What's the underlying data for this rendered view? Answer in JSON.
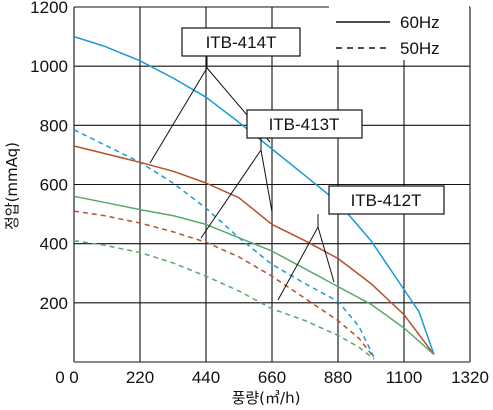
{
  "chart_data": {
    "type": "line",
    "xlabel": "풍량(㎥/h)",
    "ylabel": "정압(mmAq)",
    "xlim": [
      0,
      1320
    ],
    "ylim": [
      0,
      1200
    ],
    "xticks": [
      0,
      220,
      440,
      660,
      880,
      1100,
      1320
    ],
    "yticks": [
      0,
      200,
      400,
      600,
      800,
      1000,
      1200
    ],
    "grid": true,
    "legend_position": "top-right",
    "legend": [
      {
        "label": "60Hz",
        "style": "solid"
      },
      {
        "label": "50Hz",
        "style": "dashed"
      }
    ],
    "colors": {
      "ITB-414T": "#1a9ad6",
      "ITB-413T": "#b5502a",
      "ITB-412T": "#5aa86a"
    },
    "model_labels": [
      "ITB-414T",
      "ITB-413T",
      "ITB-412T"
    ],
    "series": [
      {
        "name": "ITB-414T",
        "frequency": "60Hz",
        "style": "solid",
        "color": "#1a9ad6",
        "x": [
          0,
          100,
          220,
          330,
          440,
          550,
          660,
          770,
          880,
          990,
          1100,
          1150,
          1200
        ],
        "y": [
          1100,
          1068,
          1018,
          960,
          895,
          810,
          720,
          630,
          540,
          410,
          245,
          170,
          25
        ]
      },
      {
        "name": "ITB-414T",
        "frequency": "50Hz",
        "style": "dashed",
        "color": "#1a9ad6",
        "x": [
          0,
          100,
          220,
          330,
          440,
          550,
          660,
          770,
          880,
          950,
          1000
        ],
        "y": [
          785,
          735,
          675,
          605,
          520,
          420,
          330,
          265,
          205,
          120,
          15
        ]
      },
      {
        "name": "ITB-413T",
        "frequency": "60Hz",
        "style": "solid",
        "color": "#b5502a",
        "x": [
          0,
          100,
          220,
          330,
          440,
          550,
          660,
          770,
          880,
          990,
          1100,
          1200
        ],
        "y": [
          730,
          705,
          675,
          645,
          605,
          555,
          465,
          410,
          350,
          265,
          160,
          25
        ]
      },
      {
        "name": "ITB-413T",
        "frequency": "50Hz",
        "style": "dashed",
        "color": "#b5502a",
        "x": [
          0,
          100,
          220,
          330,
          440,
          550,
          660,
          770,
          880,
          950,
          1000
        ],
        "y": [
          510,
          495,
          470,
          440,
          405,
          355,
          290,
          215,
          140,
          80,
          15
        ]
      },
      {
        "name": "ITB-412T",
        "frequency": "60Hz",
        "style": "solid",
        "color": "#5aa86a",
        "x": [
          0,
          100,
          220,
          330,
          440,
          550,
          660,
          770,
          880,
          990,
          1100,
          1200
        ],
        "y": [
          560,
          540,
          515,
          495,
          465,
          420,
          375,
          315,
          255,
          195,
          115,
          25
        ]
      },
      {
        "name": "ITB-412T",
        "frequency": "50Hz",
        "style": "dashed",
        "color": "#5aa86a",
        "x": [
          0,
          100,
          220,
          330,
          440,
          550,
          660,
          770,
          880,
          950,
          1000
        ],
        "y": [
          410,
          395,
          370,
          335,
          290,
          240,
          180,
          140,
          90,
          50,
          10
        ]
      }
    ]
  }
}
